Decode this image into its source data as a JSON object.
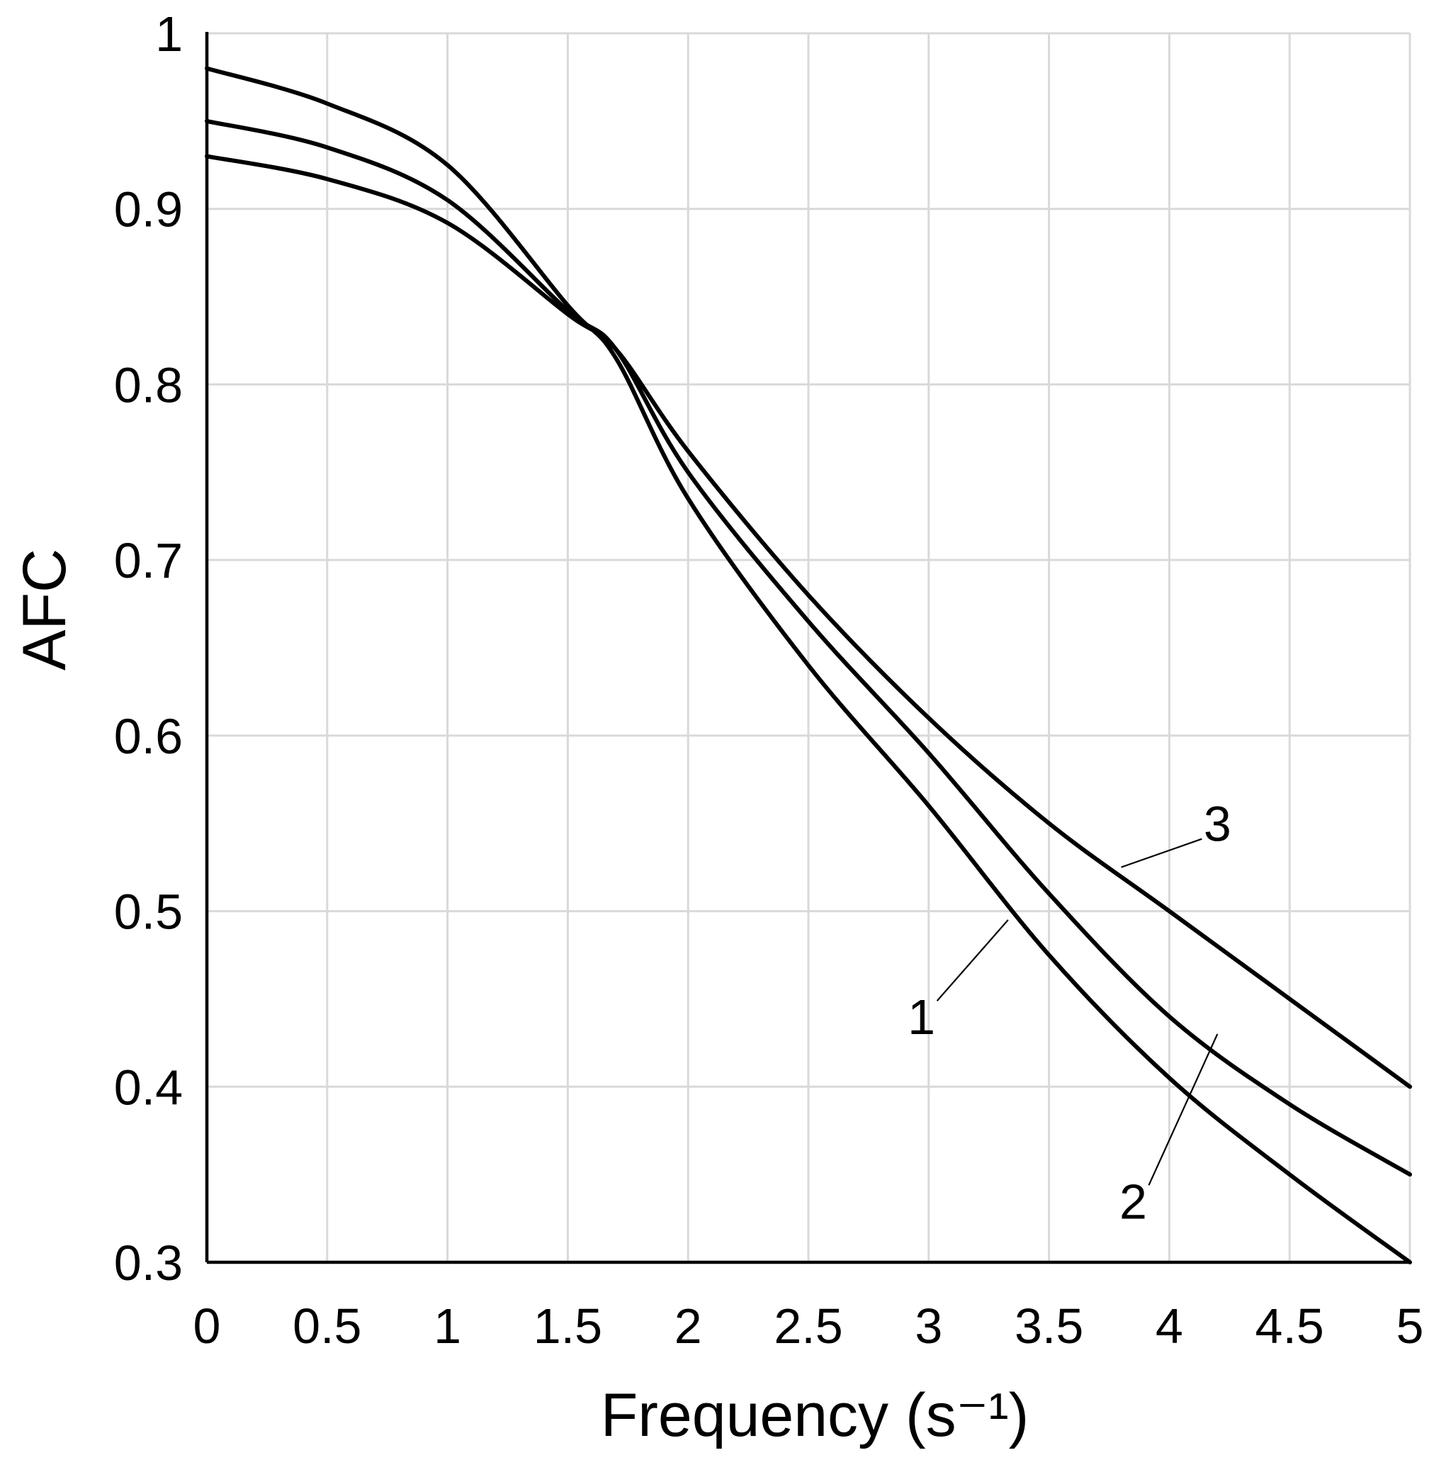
{
  "chart_data": {
    "type": "line",
    "title": "",
    "xlabel": "Frequency (s⁻¹)",
    "ylabel": "AFC",
    "xlim": [
      0,
      5
    ],
    "ylim": [
      0.3,
      1
    ],
    "grid": true,
    "x_ticks": [
      {
        "value": 0,
        "label": "0"
      },
      {
        "value": 0.5,
        "label": "0.5"
      },
      {
        "value": 1,
        "label": "1"
      },
      {
        "value": 1.5,
        "label": "1.5"
      },
      {
        "value": 2,
        "label": "2"
      },
      {
        "value": 2.5,
        "label": "2.5"
      },
      {
        "value": 3,
        "label": "3"
      },
      {
        "value": 3.5,
        "label": "3.5"
      },
      {
        "value": 4,
        "label": "4"
      },
      {
        "value": 4.5,
        "label": "4.5"
      },
      {
        "value": 5,
        "label": "5"
      }
    ],
    "y_ticks": [
      {
        "value": 0.3,
        "label": "0.3"
      },
      {
        "value": 0.4,
        "label": "0.4"
      },
      {
        "value": 0.5,
        "label": "0.5"
      },
      {
        "value": 0.6,
        "label": "0.6"
      },
      {
        "value": 0.7,
        "label": "0.7"
      },
      {
        "value": 0.8,
        "label": "0.8"
      },
      {
        "value": 0.9,
        "label": "0.9"
      },
      {
        "value": 1,
        "label": "1"
      }
    ],
    "x": [
      0,
      0.5,
      1,
      1.5,
      1.7,
      2,
      2.5,
      3,
      3.5,
      4,
      4.5,
      5
    ],
    "series": [
      {
        "name": "1",
        "values": [
          0.98,
          0.96,
          0.925,
          0.845,
          0.815,
          0.735,
          0.64,
          0.56,
          0.475,
          0.405,
          0.35,
          0.3
        ],
        "label_point": {
          "x": 3.33,
          "y": 0.495
        },
        "label_text_at": {
          "x": 2.97,
          "y": 0.44
        }
      },
      {
        "name": "2",
        "values": [
          0.95,
          0.935,
          0.905,
          0.842,
          0.82,
          0.75,
          0.665,
          0.59,
          0.51,
          0.44,
          0.39,
          0.35
        ],
        "label_point": {
          "x": 4.2,
          "y": 0.43
        },
        "label_text_at": {
          "x": 3.85,
          "y": 0.335
        }
      },
      {
        "name": "3",
        "values": [
          0.93,
          0.917,
          0.892,
          0.84,
          0.82,
          0.762,
          0.68,
          0.61,
          0.55,
          0.5,
          0.45,
          0.4
        ],
        "label_point": {
          "x": 3.8,
          "y": 0.525
        },
        "label_text_at": {
          "x": 4.2,
          "y": 0.55
        }
      }
    ]
  }
}
